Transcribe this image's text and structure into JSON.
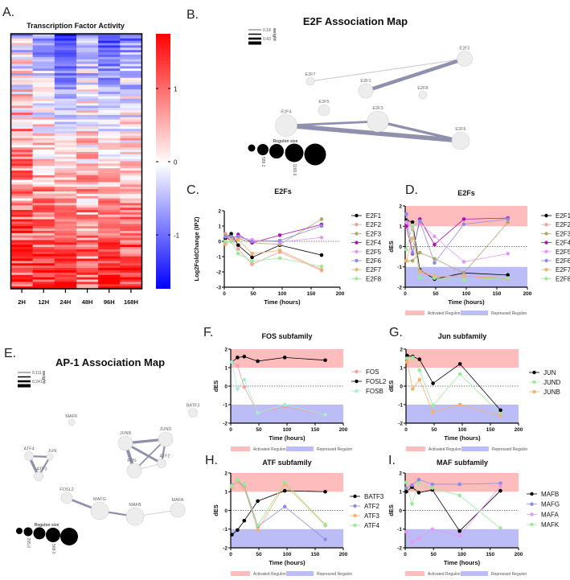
{
  "panels": {
    "A": "A.",
    "B": "B.",
    "C": "C.",
    "D": "D.",
    "E": "E.",
    "F": "F.",
    "G": "G.",
    "H": "H.",
    "I": "I."
  },
  "heatmap": {
    "title": "Transcription Factor Activity",
    "columns": [
      "2H",
      "12H",
      "24H",
      "48H",
      "96H",
      "168H"
    ],
    "colorbar_ticks": [
      1,
      0,
      -1
    ],
    "colorbar_tick_labels": [
      "1",
      "0",
      "-1"
    ],
    "scale_min": -1.7,
    "scale_max": 1.4,
    "colors": {
      "low": "#0000ff",
      "mid": "#ffffff",
      "high": "#ff0000"
    }
  },
  "e2f_map": {
    "title": "E2F Association Map",
    "weight_label": "weight",
    "weight_ticks": [
      "0.18",
      "0.43"
    ],
    "size_label": "Regulon size",
    "size_ticks": [
      "589.2",
      "1165.6"
    ],
    "nodes": [
      {
        "id": "E2F2",
        "size": 9.5
      },
      {
        "id": "E2F7",
        "size": 5
      },
      {
        "id": "E2F1",
        "size": 9
      },
      {
        "id": "E2F8",
        "size": 5
      },
      {
        "id": "E2F5",
        "size": 7
      },
      {
        "id": "E2F3",
        "size": 13
      },
      {
        "id": "E2F4",
        "size": 13.5
      },
      {
        "id": "E2F6",
        "size": 11
      }
    ],
    "edges": [
      {
        "a": "E2F7",
        "b": "E2F2",
        "w": 0.1
      },
      {
        "a": "E2F1",
        "b": "E2F2",
        "w": 0.4
      },
      {
        "a": "E2F4",
        "b": "E2F3",
        "w": 0.25
      },
      {
        "a": "E2F4",
        "b": "E2F6",
        "w": 0.5
      },
      {
        "a": "E2F3",
        "b": "E2F6",
        "w": 0.3
      }
    ]
  },
  "ap1_map": {
    "title": "AP-1 Association Map",
    "weight_label": "weight",
    "weight_ticks": [
      "0.111",
      "0.241"
    ],
    "size_label": "Regulon size",
    "size_ticks": [
      "265.0",
      "568.0"
    ],
    "nodes": [
      {
        "id": "BATF3",
        "size": 5.5
      },
      {
        "id": "MAFK",
        "size": 4
      },
      {
        "id": "JUNB",
        "size": 9
      },
      {
        "id": "JUND",
        "size": 9
      },
      {
        "id": "ATF4",
        "size": 5.5
      },
      {
        "id": "JUN",
        "size": 4
      },
      {
        "id": "ATF2",
        "size": 5.5
      },
      {
        "id": "FOS",
        "size": 9
      },
      {
        "id": "ATF3",
        "size": 5.5
      },
      {
        "id": "FOSL2",
        "size": 7
      },
      {
        "id": "MAFG",
        "size": 11
      },
      {
        "id": "MAFB",
        "size": 11
      },
      {
        "id": "MAFA",
        "size": 9
      }
    ],
    "edges": [
      {
        "a": "ATF4",
        "b": "JUN",
        "w": 0.2
      },
      {
        "a": "ATF4",
        "b": "ATF3",
        "w": 0.3
      },
      {
        "a": "JUN",
        "b": "ATF3",
        "w": 0.2
      },
      {
        "a": "JUNB",
        "b": "JUND",
        "w": 0.3
      },
      {
        "a": "JUNB",
        "b": "FOS",
        "w": 0.35
      },
      {
        "a": "JUNB",
        "b": "ATF2",
        "w": 0.25
      },
      {
        "a": "JUND",
        "b": "FOS",
        "w": 0.15
      },
      {
        "a": "JUND",
        "b": "ATF2",
        "w": 0.2
      },
      {
        "a": "FOS",
        "b": "ATF2",
        "w": 0.08
      },
      {
        "a": "FOSL2",
        "b": "MAFG",
        "w": 0.25
      },
      {
        "a": "MAFG",
        "b": "MAFB",
        "w": 0.2
      },
      {
        "a": "MAFB",
        "b": "MAFA",
        "w": 0.08
      }
    ]
  },
  "region_legend": {
    "activated": "Activated  Regulon",
    "repressed": "Repressed  Regulon",
    "activated_color": "#ffbcbc",
    "repressed_color": "#bcbcf6"
  },
  "chart_data": [
    {
      "id": "C",
      "type": "line",
      "title": "E2Fs",
      "xlabel": "Time (hours)",
      "ylabel": "Log2FoldChange (IPZ)",
      "xlim": [
        0,
        200
      ],
      "ylim": [
        -3,
        2
      ],
      "xticks": [
        0,
        50,
        100,
        150,
        200
      ],
      "yticks": [
        -3,
        -2,
        -1,
        0,
        1,
        2
      ],
      "regions": false,
      "legend": "right",
      "x": [
        2,
        12,
        24,
        48,
        96,
        168
      ],
      "series": [
        {
          "name": "E2F1",
          "color": "#000000",
          "values": [
            0.2,
            0.5,
            -0.25,
            -1.05,
            -0.25,
            -0.9
          ]
        },
        {
          "name": "E2F2",
          "color": "#f4a09c",
          "values": [
            0.5,
            0.2,
            -0.5,
            -1.5,
            -0.7,
            -1.9
          ]
        },
        {
          "name": "E2F3",
          "color": "#b3a66c",
          "values": [
            0.4,
            0.0,
            0.2,
            -0.1,
            -0.2,
            1.45
          ]
        },
        {
          "name": "E2F4",
          "color": "#b014b0",
          "values": [
            0.3,
            0.0,
            0.45,
            -0.1,
            0.4,
            1.1
          ]
        },
        {
          "name": "E2F5",
          "color": "#e49af2",
          "values": [
            0.3,
            0.2,
            0.3,
            0.1,
            -0.05,
            0.25
          ]
        },
        {
          "name": "E2F6",
          "color": "#8c8ce6",
          "values": [
            0.3,
            0.3,
            0.3,
            0.0,
            0.05,
            1.0
          ]
        },
        {
          "name": "E2F7",
          "color": "#f5b06c",
          "values": [
            -0.2,
            0.1,
            0.1,
            -0.8,
            -0.6,
            -1.85
          ]
        },
        {
          "name": "E2F8",
          "color": "#9ce89c",
          "values": [
            0.0,
            0.0,
            -0.8,
            -1.3,
            -1.1,
            -1.65
          ]
        }
      ]
    },
    {
      "id": "D",
      "type": "line",
      "title": "E2Fs",
      "xlabel": "Time (hours)",
      "ylabel": "dES",
      "xlim": [
        0,
        200
      ],
      "ylim": [
        -2,
        2
      ],
      "xticks": [
        0,
        50,
        100,
        150,
        200
      ],
      "yticks": [
        -2,
        -1,
        0,
        1,
        2
      ],
      "regions": true,
      "legend": "right",
      "x": [
        2,
        12,
        24,
        48,
        96,
        168
      ],
      "series": [
        {
          "name": "E2F1",
          "color": "#000000",
          "values": [
            1.3,
            1.2,
            -1.15,
            -1.6,
            -1.3,
            -1.4
          ]
        },
        {
          "name": "E2F2",
          "color": "#f4a09c",
          "values": [
            1.2,
            0.85,
            -1.25,
            -1.5,
            -1.45,
            -1.6
          ]
        },
        {
          "name": "E2F3",
          "color": "#b3a66c",
          "values": [
            -0.7,
            -0.7,
            -0.3,
            -0.6,
            -1.3,
            1.2
          ]
        },
        {
          "name": "E2F4",
          "color": "#b014b0",
          "values": [
            1.0,
            -0.35,
            1.35,
            0.1,
            1.35,
            1.4
          ]
        },
        {
          "name": "E2F5",
          "color": "#e49af2",
          "values": [
            1.2,
            1.0,
            1.2,
            0.5,
            -0.75,
            -0.35
          ]
        },
        {
          "name": "E2F6",
          "color": "#8c8ce6",
          "values": [
            1.6,
            -0.3,
            1.25,
            -0.8,
            1.1,
            1.35
          ]
        },
        {
          "name": "E2F7",
          "color": "#f5b06c",
          "values": [
            -0.7,
            0.4,
            -1.2,
            -1.45,
            -1.45,
            -1.55
          ]
        },
        {
          "name": "E2F8",
          "color": "#9ce89c",
          "values": [
            -0.15,
            1.05,
            -1.55,
            -1.55,
            -1.65,
            -1.55
          ]
        }
      ]
    },
    {
      "id": "F",
      "type": "line",
      "title": "FOS subfamily",
      "xlabel": "Time (hours)",
      "ylabel": "dES",
      "xlim": [
        0,
        200
      ],
      "ylim": [
        -2,
        2
      ],
      "xticks": [
        0,
        50,
        100,
        150,
        200
      ],
      "yticks": [
        -2,
        -1,
        0,
        1,
        2
      ],
      "regions": true,
      "legend": "right",
      "x": [
        2,
        12,
        24,
        48,
        96,
        168
      ],
      "series": [
        {
          "name": "FOS",
          "color": "#f4a09c",
          "values": [
            1.3,
            1.1,
            -0.05,
            -1.45,
            -1.1,
            -1.55
          ]
        },
        {
          "name": "FOSL2",
          "color": "#000000",
          "values": [
            1.3,
            1.55,
            1.6,
            1.35,
            1.55,
            1.4
          ]
        },
        {
          "name": "FOSB",
          "color": "#a6eed6",
          "values": [
            1.3,
            -0.15,
            0.35,
            -1.45,
            -1.0,
            -1.55
          ]
        }
      ]
    },
    {
      "id": "G",
      "type": "line",
      "title": "Jun subfamily",
      "xlabel": "Time (hours)",
      "ylabel": "dES",
      "xlim": [
        0,
        200
      ],
      "ylim": [
        -2,
        2
      ],
      "xticks": [
        0,
        50,
        100,
        150,
        200
      ],
      "yticks": [
        -2,
        -1,
        0,
        1,
        2
      ],
      "regions": true,
      "legend": "right",
      "x": [
        2,
        12,
        24,
        48,
        96,
        168
      ],
      "series": [
        {
          "name": "JUN",
          "color": "#000000",
          "values": [
            1.65,
            1.6,
            1.45,
            0.15,
            1.2,
            -1.3
          ]
        },
        {
          "name": "JUND",
          "color": "#9ce89c",
          "values": [
            1.5,
            1.55,
            0.85,
            -1.05,
            0.65,
            -1.5
          ]
        },
        {
          "name": "JUNB",
          "color": "#f5b06c",
          "values": [
            1.3,
            -0.15,
            0.35,
            -1.4,
            -1.0,
            -1.6
          ]
        }
      ]
    },
    {
      "id": "H",
      "type": "line",
      "title": "ATF subfamily",
      "xlabel": "Time (hours)",
      "ylabel": "dES",
      "xlim": [
        0,
        200
      ],
      "ylim": [
        -2,
        2
      ],
      "xticks": [
        0,
        50,
        100,
        150,
        200
      ],
      "yticks": [
        -2,
        -1,
        0,
        1,
        2
      ],
      "regions": true,
      "legend": "right",
      "x": [
        2,
        12,
        24,
        48,
        96,
        168
      ],
      "series": [
        {
          "name": "BATF3",
          "color": "#000000",
          "values": [
            -1.3,
            -1.05,
            -0.55,
            0.5,
            1.05,
            1.0
          ]
        },
        {
          "name": "ATF2",
          "color": "#8c8ce6",
          "values": [
            1.35,
            1.6,
            1.25,
            -0.85,
            0.2,
            -1.55
          ]
        },
        {
          "name": "ATF3",
          "color": "#f5b06c",
          "values": [
            1.25,
            1.55,
            1.2,
            -1.05,
            1.4,
            -0.8
          ]
        },
        {
          "name": "ATF4",
          "color": "#9ce89c",
          "values": [
            1.3,
            1.65,
            1.4,
            -0.8,
            1.5,
            -0.75
          ]
        }
      ]
    },
    {
      "id": "I",
      "type": "line",
      "title": "MAF subfamily",
      "xlabel": "Time (hours)",
      "ylabel": "dES",
      "xlim": [
        0,
        200
      ],
      "ylim": [
        -2,
        2
      ],
      "xticks": [
        0,
        50,
        100,
        150,
        200
      ],
      "yticks": [
        -2,
        -1,
        0,
        1,
        2
      ],
      "regions": true,
      "legend": "right",
      "x": [
        2,
        12,
        24,
        48,
        96,
        168
      ],
      "series": [
        {
          "name": "MAFB",
          "color": "#000000",
          "values": [
            1.0,
            1.25,
            0.95,
            1.1,
            -1.1,
            1.05
          ]
        },
        {
          "name": "MAFG",
          "color": "#8c8ce6",
          "values": [
            1.2,
            1.35,
            1.65,
            1.4,
            1.4,
            1.45
          ]
        },
        {
          "name": "MAFA",
          "color": "#e49af2",
          "values": [
            -1.15,
            -1.7,
            -1.5,
            -1.0,
            -1.35,
            1.3
          ]
        },
        {
          "name": "MAFK",
          "color": "#9ce89c",
          "values": [
            1.5,
            0.35,
            1.45,
            1.2,
            0.8,
            -0.95
          ]
        }
      ]
    }
  ]
}
